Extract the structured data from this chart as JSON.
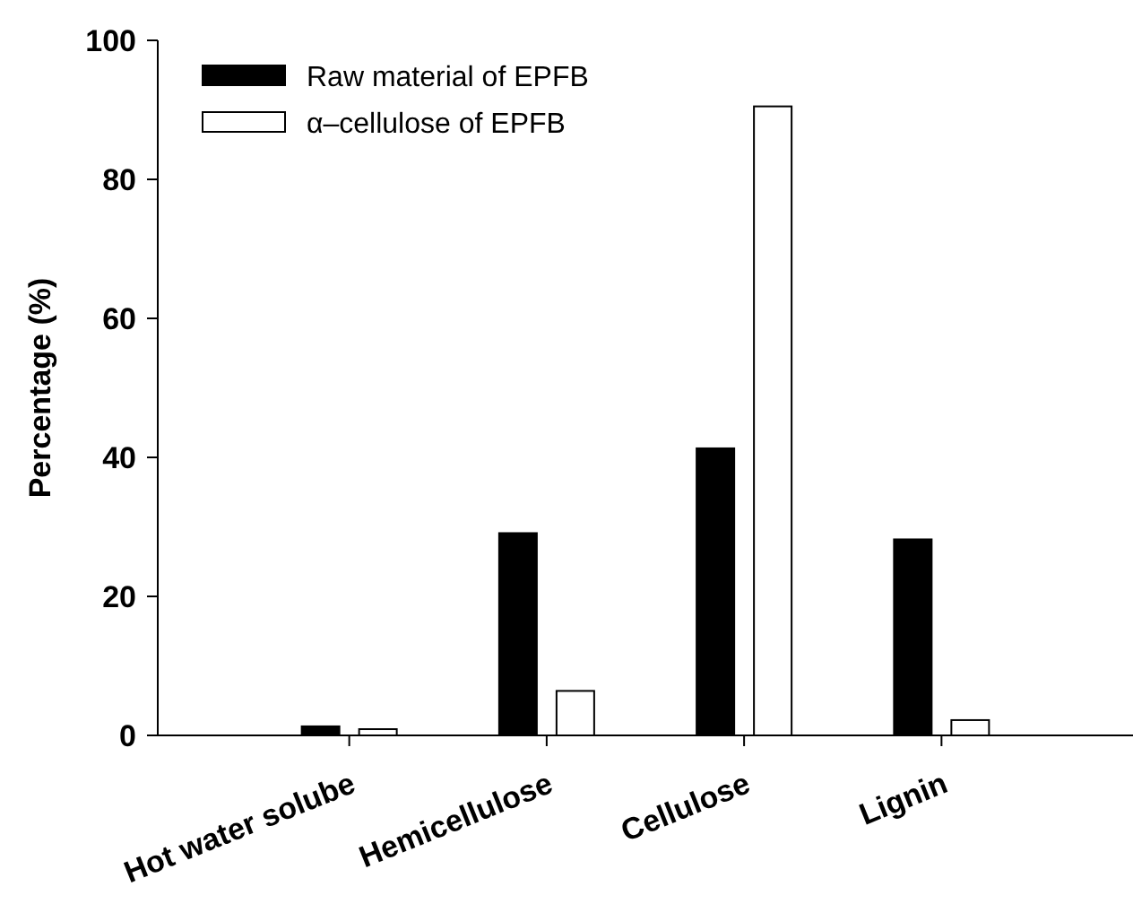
{
  "chart_data": {
    "type": "bar",
    "ylabel": "Percentage (%)",
    "categories": [
      "Hot water solube",
      "Hemicellulose",
      "Cellulose",
      "Lignin"
    ],
    "series": [
      {
        "name": "Raw material of EPFB",
        "color": "#000000",
        "values": [
          1.3,
          29.1,
          41.3,
          28.2
        ]
      },
      {
        "name": "α–cellulose of EPFB",
        "color": "#ffffff",
        "values": [
          0.9,
          6.4,
          90.5,
          2.2
        ]
      }
    ],
    "ylim": [
      0,
      100
    ],
    "yticks": [
      0,
      20,
      40,
      60,
      80,
      100
    ],
    "legend": "top left"
  }
}
